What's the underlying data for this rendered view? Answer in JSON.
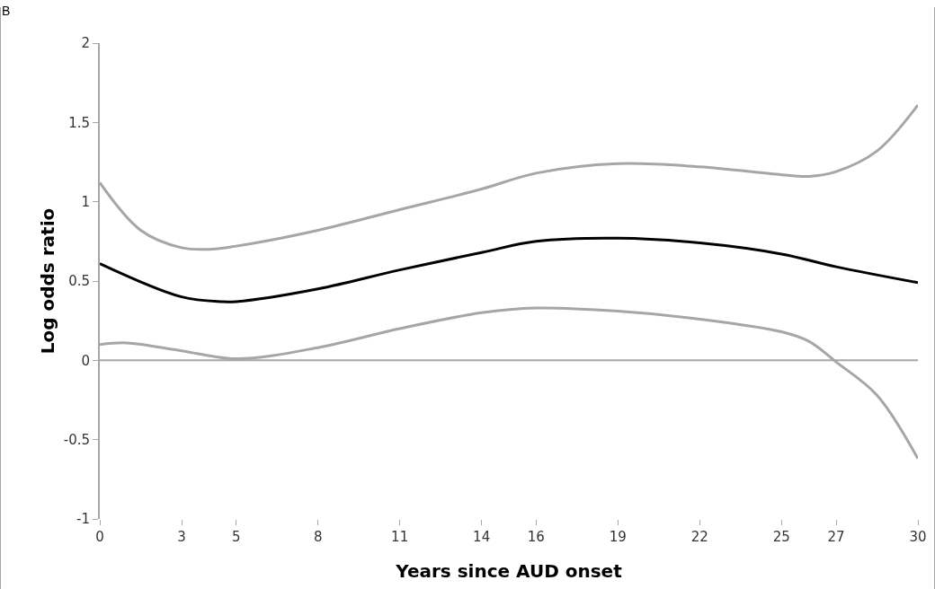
{
  "chart_data": {
    "type": "line",
    "xlabel": "Years since AUD onset",
    "ylabel": "Log odds ratio",
    "annotations": [
      "B"
    ],
    "xlim": [
      0,
      30
    ],
    "xticks": [
      0,
      3,
      5,
      8,
      11,
      14,
      16,
      19,
      22,
      25,
      27,
      30
    ],
    "ylim": [
      -1,
      2
    ],
    "yticks": [
      -1,
      -0.5,
      0,
      0.5,
      1,
      1.5,
      2
    ],
    "grid": false,
    "marker": "none",
    "line_style": "solid",
    "ref_lines": [
      {
        "axis": "y",
        "value": 0,
        "color": "#a6a6a6"
      }
    ],
    "series": [
      {
        "color": "#a6a6a6",
        "x": [
          0,
          1.5,
          3,
          4,
          5,
          8,
          11,
          14,
          16,
          19,
          22,
          25,
          26,
          27,
          28.5,
          30
        ],
        "values": [
          1.12,
          0.82,
          0.71,
          0.7,
          0.72,
          0.82,
          0.95,
          1.08,
          1.18,
          1.24,
          1.22,
          1.17,
          1.16,
          1.19,
          1.32,
          1.61
        ]
      },
      {
        "color": "#000000",
        "x": [
          0,
          3,
          4.5,
          5,
          8,
          11,
          14,
          16,
          19,
          22,
          25,
          27,
          30
        ],
        "values": [
          0.61,
          0.4,
          0.37,
          0.37,
          0.45,
          0.57,
          0.68,
          0.75,
          0.77,
          0.74,
          0.67,
          0.59,
          0.49
        ]
      },
      {
        "color": "#a6a6a6",
        "x": [
          0,
          1,
          3,
          5,
          8,
          11,
          14,
          16,
          19,
          22,
          25,
          26,
          27,
          28.5,
          30
        ],
        "values": [
          0.1,
          0.11,
          0.06,
          0.01,
          0.08,
          0.2,
          0.3,
          0.33,
          0.31,
          0.26,
          0.18,
          0.12,
          -0.01,
          -0.22,
          -0.62
        ]
      }
    ]
  }
}
